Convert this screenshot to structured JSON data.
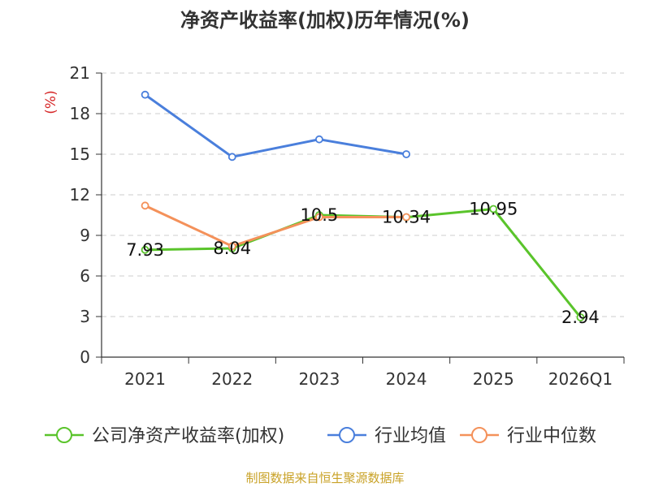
{
  "chart_data": {
    "type": "line",
    "title": "净资产收益率(加权)历年情况(%)",
    "ylabel": "(%)",
    "xlabel": "",
    "ylim": [
      0,
      21
    ],
    "yticks": [
      0,
      3,
      6,
      9,
      12,
      15,
      18,
      21
    ],
    "grid": true,
    "categories": [
      "2021",
      "2022",
      "2023",
      "2024",
      "2025",
      "2026Q1"
    ],
    "series": [
      {
        "name": "公司净资产收益率(加权)",
        "color": "#5ac42b",
        "values": [
          7.93,
          8.04,
          10.5,
          10.34,
          10.95,
          2.94
        ],
        "show_labels": true
      },
      {
        "name": "行业均值",
        "color": "#4a7fdc",
        "values": [
          19.4,
          14.8,
          16.1,
          15.0,
          null,
          null
        ],
        "show_labels": false
      },
      {
        "name": "行业中位数",
        "color": "#f4915a",
        "values": [
          11.2,
          8.2,
          10.35,
          10.35,
          null,
          null
        ],
        "show_labels": false
      }
    ],
    "data_labels": [
      "7.93",
      "8.04",
      "10.5",
      "10.34",
      "10.95",
      "2.94"
    ],
    "legend_position": "bottom"
  },
  "source": "制图数据来自恒生聚源数据库"
}
